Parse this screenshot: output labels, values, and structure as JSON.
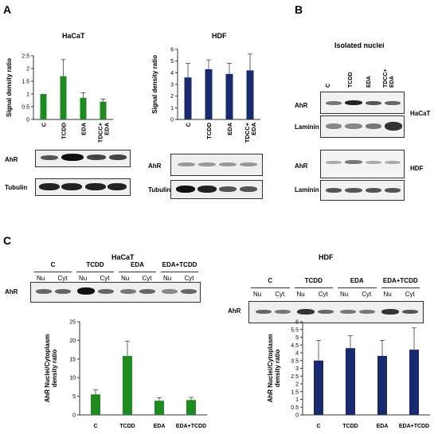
{
  "panels": {
    "A": {
      "letter": "A",
      "hacat": {
        "title": "HaCaT",
        "blot_rows": [
          "AhR",
          "Tubulin"
        ]
      },
      "hdf": {
        "title": "HDF",
        "blot_rows": [
          "AhR",
          "Tubulin"
        ]
      }
    },
    "B": {
      "letter": "B",
      "title": "Isolated nuclei",
      "lanes": [
        "C",
        "TCDD",
        "EDA",
        "TDCC+ EDA"
      ],
      "rows": [
        "AhR",
        "Laminin B",
        "AhR",
        "Laminin B"
      ],
      "cell_labels": [
        "HaCaT",
        "HDF"
      ]
    },
    "C": {
      "letter": "C",
      "hacat": {
        "title": "HaCaT",
        "groups": [
          "C",
          "TCDD",
          "EDA",
          "EDA+TCDD"
        ],
        "sublanes": [
          "Nu",
          "Cyt"
        ],
        "blot_row": "AhR"
      },
      "hdf": {
        "title": "HDF",
        "groups": [
          "C",
          "TCDD",
          "EDA",
          "EDA+TCDD"
        ],
        "sublanes": [
          "Nu",
          "Cyt"
        ],
        "blot_row": "AhR"
      }
    }
  },
  "chart_data": [
    {
      "type": "bar",
      "panel": "A-HaCaT",
      "categories": [
        "C",
        "TCDD",
        "EDA",
        "TDCC+ EDA"
      ],
      "values": [
        1.0,
        1.7,
        0.85,
        0.7
      ],
      "errors": [
        0.0,
        0.65,
        0.2,
        0.1
      ],
      "ylabel": "Signal density ratio",
      "ylim": [
        0,
        2.5
      ],
      "yticks": [
        "0",
        "0.5",
        "1",
        "1.5",
        "2",
        "2.5"
      ],
      "color": "#1f8a1f"
    },
    {
      "type": "bar",
      "panel": "A-HDF",
      "categories": [
        "C",
        "TCDD",
        "EDA",
        "TDCC+ EDA"
      ],
      "values": [
        3.6,
        4.3,
        3.9,
        4.2
      ],
      "errors": [
        1.2,
        0.8,
        0.9,
        1.4
      ],
      "ylabel": "Signal density ratio",
      "ylim": [
        0,
        6
      ],
      "yticks": [
        "0",
        "1",
        "2",
        "3",
        "4",
        "5",
        "6"
      ],
      "color": "#1a2a6e"
    },
    {
      "type": "bar",
      "panel": "C-HaCaT",
      "categories": [
        "C",
        "TCDD",
        "EDA",
        "EDA+TCDD"
      ],
      "values": [
        5.5,
        15.8,
        3.8,
        4.0
      ],
      "errors": [
        1.2,
        4.0,
        0.8,
        0.7
      ],
      "ylabel": "AhR Nuclei/Cytoplasm density ratio",
      "ylim": [
        0,
        25
      ],
      "yticks": [
        "0",
        "5",
        "10",
        "15",
        "20",
        "25"
      ],
      "color": "#1f8a1f"
    },
    {
      "type": "bar",
      "panel": "C-HDF",
      "categories": [
        "C",
        "TCDD",
        "EDA",
        "EDA+TCDD"
      ],
      "values": [
        3.5,
        4.3,
        3.8,
        4.2
      ],
      "errors": [
        1.3,
        0.8,
        1.0,
        1.4
      ],
      "ylabel": "AhR Nuclei/Cytoplasm density ratio",
      "ylim": [
        0,
        6
      ],
      "yticks": [
        "0",
        "0.5",
        "1",
        "1.5",
        "2",
        "2.5",
        "3",
        "3.5",
        "4",
        "4.5",
        "5",
        "5.5",
        "6"
      ],
      "color": "#1a2a6e"
    }
  ]
}
